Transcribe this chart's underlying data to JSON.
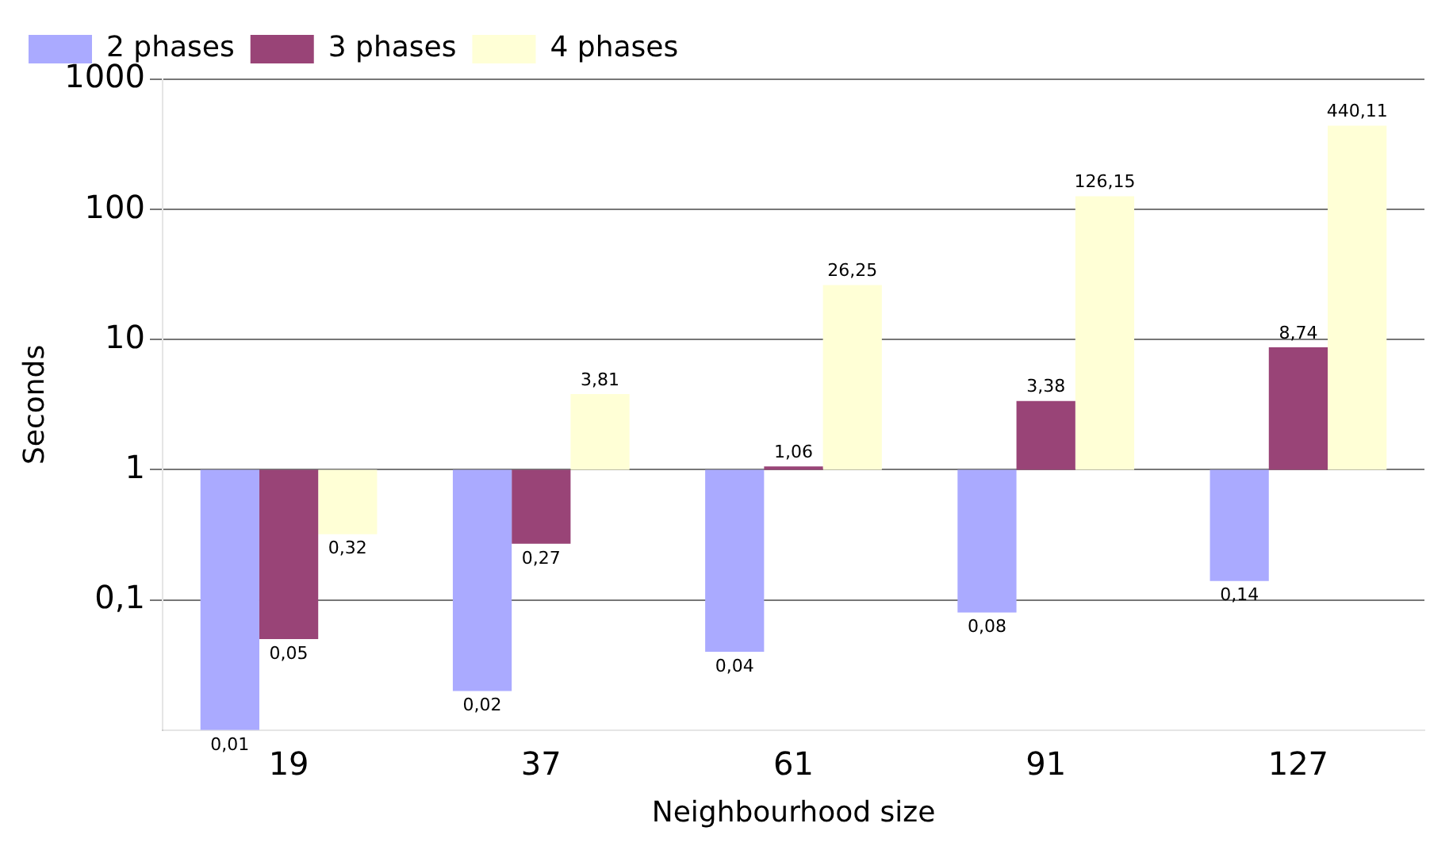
{
  "chart_data": {
    "type": "bar",
    "xlabel": "Neighbourhood size",
    "ylabel": "Seconds",
    "categories": [
      "19",
      "37",
      "61",
      "91",
      "127"
    ],
    "series": [
      {
        "name": "2 phases",
        "color": "#aaaaff",
        "base": [
          1,
          1,
          1,
          1,
          1
        ],
        "values": [
          -0.99,
          -0.98,
          -0.96,
          -0.92,
          -0.86
        ],
        "value_labels": [
          "0,01",
          "0,02",
          "0,04",
          "0,08",
          "0,14"
        ]
      },
      {
        "name": "3 phases",
        "color": "#994477",
        "base": [
          1,
          1,
          1,
          1,
          1
        ],
        "values": [
          -0.95,
          -0.73,
          0.06,
          2.38,
          7.74
        ],
        "value_labels": [
          "0,05",
          "0,27",
          "1,06",
          "3,38",
          "8,74"
        ]
      },
      {
        "name": "4 phases",
        "color": "#ffffd6",
        "base": [
          1,
          1,
          1,
          1,
          1
        ],
        "values": [
          -0.68,
          2.81,
          25.25,
          125.15,
          439.11
        ],
        "value_labels": [
          "0,32",
          "3,81",
          "26,25",
          "126,15",
          "440,11"
        ]
      }
    ],
    "log": "y",
    "ylim": [
      0.01,
      1000
    ],
    "yticks": [
      {
        "value": 0.1,
        "label": "0,1"
      },
      1,
      10,
      100,
      1000
    ],
    "grid": "y",
    "legend": "top left"
  }
}
